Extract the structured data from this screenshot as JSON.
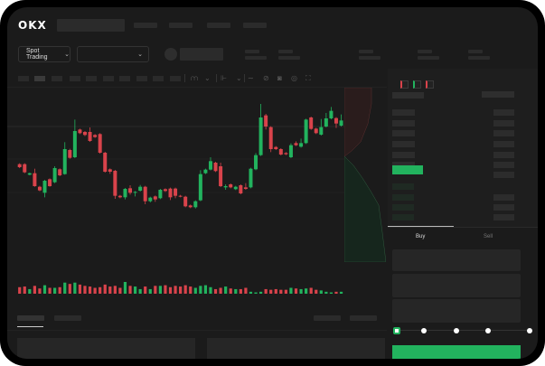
{
  "header": {
    "logo": "OKX"
  },
  "market_bar": {
    "mode_label": "Spot Trading",
    "pair_label": ""
  },
  "trade": {
    "tabs": [
      "Buy",
      "Sell"
    ],
    "active_tab": "Buy"
  },
  "colors": {
    "up": "#22b35e",
    "down": "#d9434b",
    "accent": "#22b35e",
    "background": "#1b1b1b"
  },
  "icons": [
    "chevron-down-icon",
    "indicator-icon",
    "draw-icon",
    "ruler-icon",
    "camera-icon",
    "settings-icon",
    "fullscreen-icon",
    "orderbook-both-icon",
    "orderbook-bids-icon",
    "orderbook-asks-icon"
  ],
  "slider": {
    "value_percent": 0,
    "stops": [
      0,
      25,
      50,
      75,
      100
    ]
  },
  "chart_data": {
    "type": "candlestick",
    "ylim": [
      100,
      142
    ],
    "candles": [
      [
        117.5,
        116.5,
        117.8,
        116.2
      ],
      [
        117.5,
        114.8,
        117.8,
        114.5
      ],
      [
        114.0,
        114.5,
        114.7,
        113.8
      ],
      [
        114.5,
        110.2,
        116.0,
        110.0
      ],
      [
        110.0,
        108.8,
        110.3,
        108.5
      ],
      [
        108.0,
        112.0,
        112.3,
        106.5
      ],
      [
        112.5,
        110.2,
        112.8,
        110.0
      ],
      [
        111.5,
        116.2,
        116.8,
        111.2
      ],
      [
        115.8,
        113.8,
        116.1,
        113.5
      ],
      [
        114.2,
        122.5,
        124.8,
        114.0
      ],
      [
        122.2,
        119.6,
        122.6,
        119.3
      ],
      [
        119.8,
        128.5,
        132.3,
        119.5
      ],
      [
        129.0,
        127.8,
        129.3,
        127.5
      ],
      [
        128.2,
        127.2,
        128.5,
        126.8
      ],
      [
        128.2,
        125.2,
        129.7,
        124.9
      ],
      [
        127.2,
        126.5,
        127.5,
        126.2
      ],
      [
        127.5,
        121.3,
        127.8,
        121.0
      ],
      [
        121.3,
        115.0,
        121.6,
        114.7
      ],
      [
        115.8,
        115.0,
        116.1,
        114.3
      ],
      [
        115.3,
        107.0,
        115.6,
        106.0
      ],
      [
        107.0,
        106.5,
        107.3,
        106.2
      ],
      [
        106.5,
        109.3,
        109.6,
        105.8
      ],
      [
        109.5,
        108.0,
        110.5,
        107.4
      ],
      [
        108.0,
        108.3,
        108.6,
        106.8
      ],
      [
        108.7,
        110.0,
        110.6,
        108.4
      ],
      [
        110.0,
        105.2,
        110.3,
        104.2
      ],
      [
        105.2,
        106.4,
        106.7,
        104.8
      ],
      [
        106.8,
        105.8,
        107.1,
        105.0
      ],
      [
        106.2,
        109.0,
        109.3,
        105.9
      ],
      [
        109.2,
        108.6,
        109.5,
        108.3
      ],
      [
        109.4,
        106.5,
        109.7,
        105.6
      ],
      [
        109.4,
        107.0,
        109.7,
        106.2
      ],
      [
        107.0,
        106.8,
        107.3,
        106.5
      ],
      [
        106.7,
        103.5,
        107.0,
        103.2
      ],
      [
        103.8,
        103.2,
        104.1,
        102.9
      ],
      [
        103.2,
        105.2,
        105.5,
        102.8
      ],
      [
        105.5,
        114.2,
        115.5,
        105.2
      ],
      [
        114.5,
        115.7,
        116.0,
        114.2
      ],
      [
        115.7,
        118.5,
        119.8,
        115.4
      ],
      [
        118.0,
        115.2,
        118.3,
        114.9
      ],
      [
        116.8,
        110.2,
        118.0,
        109.9
      ],
      [
        109.8,
        110.2,
        110.8,
        109.0
      ],
      [
        110.8,
        109.8,
        111.1,
        109.5
      ],
      [
        109.2,
        110.0,
        110.3,
        108.9
      ],
      [
        110.5,
        107.8,
        110.8,
        107.5
      ],
      [
        109.8,
        109.3,
        111.2,
        109.0
      ],
      [
        109.8,
        116.0,
        116.3,
        109.5
      ],
      [
        115.8,
        120.5,
        121.2,
        115.5
      ],
      [
        120.5,
        133.0,
        137.5,
        120.2
      ],
      [
        133.7,
        130.0,
        134.2,
        129.0
      ],
      [
        129.8,
        122.5,
        130.1,
        121.5
      ],
      [
        123.2,
        122.5,
        123.5,
        122.2
      ],
      [
        122.5,
        120.7,
        122.8,
        120.4
      ],
      [
        121.2,
        120.8,
        121.5,
        120.5
      ],
      [
        119.8,
        123.8,
        124.4,
        119.5
      ],
      [
        124.5,
        123.8,
        125.1,
        123.5
      ],
      [
        123.3,
        124.5,
        126.0,
        123.0
      ],
      [
        124.5,
        132.3,
        132.6,
        124.2
      ],
      [
        133.0,
        129.2,
        133.3,
        128.9
      ],
      [
        129.3,
        127.8,
        129.6,
        127.5
      ],
      [
        127.3,
        129.8,
        132.5,
        127.0
      ],
      [
        130.0,
        132.7,
        134.5,
        129.7
      ],
      [
        132.7,
        135.2,
        136.5,
        132.4
      ],
      [
        132.8,
        131.0,
        133.1,
        129.5
      ],
      [
        130.3,
        132.0,
        134.0,
        130.0
      ]
    ],
    "volume": [
      10,
      11,
      7,
      12,
      8,
      13,
      9,
      9,
      10,
      17,
      15,
      17,
      14,
      12,
      11,
      9,
      10,
      14,
      11,
      12,
      9,
      18,
      12,
      11,
      7,
      11,
      7,
      12,
      12,
      13,
      10,
      12,
      11,
      13,
      11,
      9,
      12,
      13,
      10,
      7,
      9,
      11,
      8,
      7,
      7,
      9,
      3,
      2,
      3,
      7,
      6,
      7,
      6,
      6,
      9,
      8,
      7,
      8,
      9,
      6,
      5,
      3,
      2,
      3,
      3
    ]
  }
}
